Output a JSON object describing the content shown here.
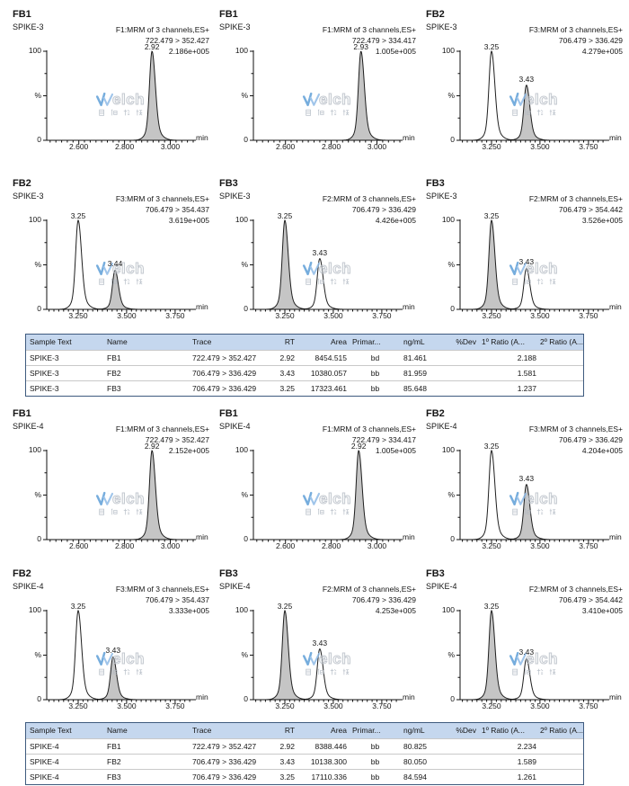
{
  "watermark": {
    "brand_initial": "W",
    "brand_rest": "elch",
    "cjk": "月旭科技",
    "accent_color": "#5f9fd8",
    "gray_color": "#b0b8c2"
  },
  "colors": {
    "peak_fill": "#c5c5c5",
    "trace": "#1e1e1e",
    "table_header_bg": "#c5d7ee",
    "table_border": "#3e5a7e"
  },
  "chart_data": {
    "type": "line",
    "description": "MRM chromatogram panels (intensity % vs retention time, min) with quantification tables",
    "x_unit": "min",
    "y_axis": {
      "label": "%",
      "min": 0,
      "max": 100,
      "ticks": [
        0,
        100
      ]
    },
    "blocks": [
      {
        "sample": "SPIKE-3",
        "panels": [
          {
            "compound": "FB1",
            "sample": "SPIKE-3",
            "channel": "F1:MRM of 3 channels,ES+",
            "transition": "722.479 > 352.427",
            "intensity": "2.186e+005",
            "x_min": 2.46,
            "x_max": 3.1,
            "x_ticks": [
              "2.600",
              "2.800",
              "3.000"
            ],
            "peaks": [
              {
                "rt": 2.92,
                "label": "2.92",
                "height_pct": 100,
                "filled": true
              }
            ]
          },
          {
            "compound": "FB1",
            "sample": "SPIKE-3",
            "channel": "F1:MRM of 3 channels,ES+",
            "transition": "722.479 > 334.417",
            "intensity": "1.005e+005",
            "x_min": 2.46,
            "x_max": 3.1,
            "x_ticks": [
              "2.600",
              "2.800",
              "3.000"
            ],
            "peaks": [
              {
                "rt": 2.93,
                "label": "2.93",
                "height_pct": 100,
                "filled": true
              }
            ]
          },
          {
            "compound": "FB2",
            "sample": "SPIKE-3",
            "channel": "F3:MRM of 3 channels,ES+",
            "transition": "706.479 > 336.429",
            "intensity": "4.279e+005",
            "x_min": 3.088,
            "x_max": 3.843,
            "x_ticks": [
              "3.250",
              "3.500",
              "3.750"
            ],
            "peaks": [
              {
                "rt": 3.25,
                "label": "3.25",
                "height_pct": 100,
                "filled": false
              },
              {
                "rt": 3.43,
                "label": "3.43",
                "height_pct": 62,
                "filled": true
              }
            ]
          },
          {
            "compound": "FB2",
            "sample": "SPIKE-3",
            "channel": "F3:MRM of 3 channels,ES+",
            "transition": "706.479 > 354.437",
            "intensity": "3.619e+005",
            "x_min": 3.088,
            "x_max": 3.843,
            "x_ticks": [
              "3.250",
              "3.500",
              "3.750"
            ],
            "peaks": [
              {
                "rt": 3.25,
                "label": "3.25",
                "height_pct": 100,
                "filled": false
              },
              {
                "rt": 3.44,
                "label": "3.44",
                "height_pct": 44,
                "filled": true
              }
            ]
          },
          {
            "compound": "FB3",
            "sample": "SPIKE-3",
            "channel": "F2:MRM of 3 channels,ES+",
            "transition": "706.479 > 336.429",
            "intensity": "4.426e+005",
            "x_min": 3.088,
            "x_max": 3.843,
            "x_ticks": [
              "3.250",
              "3.500",
              "3.750"
            ],
            "peaks": [
              {
                "rt": 3.25,
                "label": "3.25",
                "height_pct": 100,
                "filled": true
              },
              {
                "rt": 3.43,
                "label": "3.43",
                "height_pct": 57,
                "filled": false
              }
            ]
          },
          {
            "compound": "FB3",
            "sample": "SPIKE-3",
            "channel": "F2:MRM of 3 channels,ES+",
            "transition": "706.479 > 354.442",
            "intensity": "3.526e+005",
            "x_min": 3.088,
            "x_max": 3.843,
            "x_ticks": [
              "3.250",
              "3.500",
              "3.750"
            ],
            "peaks": [
              {
                "rt": 3.25,
                "label": "3.25",
                "height_pct": 100,
                "filled": true
              },
              {
                "rt": 3.43,
                "label": "3.43",
                "height_pct": 46,
                "filled": false
              }
            ]
          }
        ],
        "table": {
          "headers": [
            "Sample Text",
            "Name",
            "Trace",
            "RT",
            "Area",
            "Primar...",
            "ng/mL",
            "%Dev",
            "1º Ratio (A...",
            "2º Ratio (A..."
          ],
          "rows": [
            [
              "SPIKE-3",
              "FB1",
              "722.479 > 352.427",
              "2.92",
              "8454.515",
              "bd",
              "81.461",
              "",
              "2.188",
              ""
            ],
            [
              "SPIKE-3",
              "FB2",
              "706.479 > 336.429",
              "3.43",
              "10380.057",
              "bb",
              "81.959",
              "",
              "1.581",
              ""
            ],
            [
              "SPIKE-3",
              "FB3",
              "706.479 > 336.429",
              "3.25",
              "17323.461",
              "bb",
              "85.648",
              "",
              "1.237",
              ""
            ]
          ]
        }
      },
      {
        "sample": "SPIKE-4",
        "panels": [
          {
            "compound": "FB1",
            "sample": "SPIKE-4",
            "channel": "F1:MRM of 3 channels,ES+",
            "transition": "722.479 > 352.427",
            "intensity": "2.152e+005",
            "x_min": 2.46,
            "x_max": 3.1,
            "x_ticks": [
              "2.600",
              "2.800",
              "3.000"
            ],
            "peaks": [
              {
                "rt": 2.92,
                "label": "2.92",
                "height_pct": 100,
                "filled": true
              }
            ]
          },
          {
            "compound": "FB1",
            "sample": "SPIKE-4",
            "channel": "F1:MRM of 3 channels,ES+",
            "transition": "722.479 > 334.417",
            "intensity": "1.005e+005",
            "x_min": 2.46,
            "x_max": 3.1,
            "x_ticks": [
              "2.600",
              "2.800",
              "3.000"
            ],
            "peaks": [
              {
                "rt": 2.92,
                "label": "2.92",
                "height_pct": 100,
                "filled": true
              }
            ]
          },
          {
            "compound": "FB2",
            "sample": "SPIKE-4",
            "channel": "F3:MRM of 3 channels,ES+",
            "transition": "706.479 > 336.429",
            "intensity": "4.204e+005",
            "x_min": 3.088,
            "x_max": 3.843,
            "x_ticks": [
              "3.250",
              "3.500",
              "3.750"
            ],
            "peaks": [
              {
                "rt": 3.25,
                "label": "3.25",
                "height_pct": 100,
                "filled": false
              },
              {
                "rt": 3.43,
                "label": "3.43",
                "height_pct": 62,
                "filled": true
              }
            ]
          },
          {
            "compound": "FB2",
            "sample": "SPIKE-4",
            "channel": "F3:MRM of 3 channels,ES+",
            "transition": "706.479 > 354.437",
            "intensity": "3.333e+005",
            "x_min": 3.088,
            "x_max": 3.843,
            "x_ticks": [
              "3.250",
              "3.500",
              "3.750"
            ],
            "peaks": [
              {
                "rt": 3.25,
                "label": "3.25",
                "height_pct": 100,
                "filled": false
              },
              {
                "rt": 3.43,
                "label": "3.43",
                "height_pct": 48,
                "filled": true
              }
            ]
          },
          {
            "compound": "FB3",
            "sample": "SPIKE-4",
            "channel": "F2:MRM of 3 channels,ES+",
            "transition": "706.479 > 336.429",
            "intensity": "4.253e+005",
            "x_min": 3.088,
            "x_max": 3.843,
            "x_ticks": [
              "3.250",
              "3.500",
              "3.750"
            ],
            "peaks": [
              {
                "rt": 3.25,
                "label": "3.25",
                "height_pct": 100,
                "filled": true
              },
              {
                "rt": 3.43,
                "label": "3.43",
                "height_pct": 57,
                "filled": false
              }
            ]
          },
          {
            "compound": "FB3",
            "sample": "SPIKE-4",
            "channel": "F2:MRM of 3 channels,ES+",
            "transition": "706.479 > 354.442",
            "intensity": "3.410e+005",
            "x_min": 3.088,
            "x_max": 3.843,
            "x_ticks": [
              "3.250",
              "3.500",
              "3.750"
            ],
            "peaks": [
              {
                "rt": 3.25,
                "label": "3.25",
                "height_pct": 100,
                "filled": true
              },
              {
                "rt": 3.43,
                "label": "3.43",
                "height_pct": 46,
                "filled": false
              }
            ]
          }
        ],
        "table": {
          "headers": [
            "Sample Text",
            "Name",
            "Trace",
            "RT",
            "Area",
            "Primar...",
            "ng/mL",
            "%Dev",
            "1º Ratio (A...",
            "2º Ratio (A..."
          ],
          "rows": [
            [
              "SPIKE-4",
              "FB1",
              "722.479 > 352.427",
              "2.92",
              "8388.446",
              "bb",
              "80.825",
              "",
              "2.234",
              ""
            ],
            [
              "SPIKE-4",
              "FB2",
              "706.479 > 336.429",
              "3.43",
              "10138.300",
              "bb",
              "80.050",
              "",
              "1.589",
              ""
            ],
            [
              "SPIKE-4",
              "FB3",
              "706.479 > 336.429",
              "3.25",
              "17110.336",
              "bb",
              "84.594",
              "",
              "1.261",
              ""
            ]
          ]
        }
      }
    ]
  }
}
